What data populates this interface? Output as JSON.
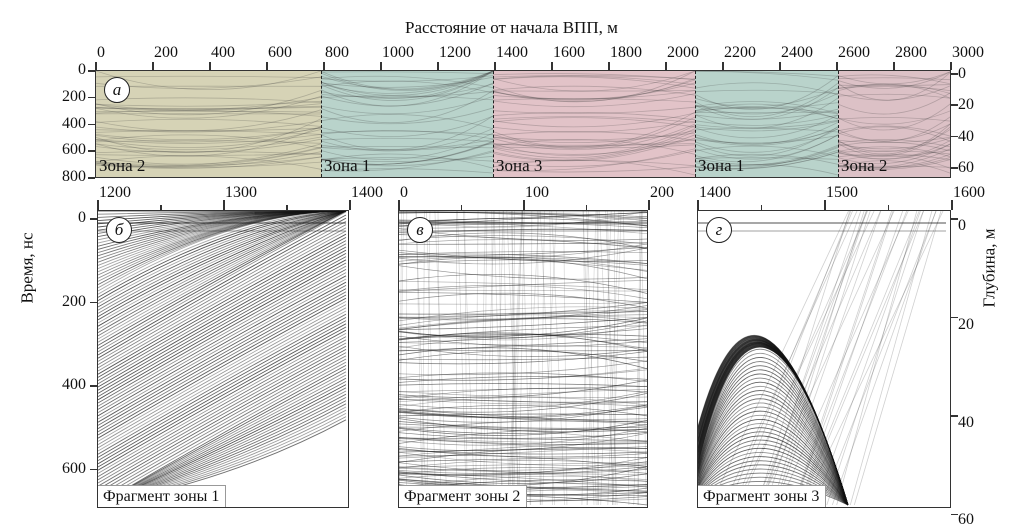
{
  "figure": {
    "top_axis_title": "Расстояние от начала ВПП, м",
    "left_axis_title": "Время, нс",
    "right_axis_title": "Глубина, м"
  },
  "panel_a": {
    "label": "а",
    "x_ticks": [
      "0",
      "200",
      "400",
      "600",
      "800",
      "1000",
      "1200",
      "1400",
      "1600",
      "1800",
      "2000",
      "2200",
      "2400",
      "2600",
      "2800",
      "3000"
    ],
    "time_ticks": [
      "0",
      "200",
      "400",
      "600",
      "800"
    ],
    "depth_ticks": [
      "0",
      "20",
      "40",
      "60"
    ],
    "zones": [
      {
        "label": "Зона 2",
        "color": "#d6d3b6"
      },
      {
        "label": "Зона 1",
        "color": "#b9d3cb"
      },
      {
        "label": "Зона 3",
        "color": "#e2c3c8"
      },
      {
        "label": "Зона 1",
        "color": "#b9d3cb"
      },
      {
        "label": "Зона 2",
        "color": "#dcc1c6"
      }
    ]
  },
  "panel_b": {
    "label": "б",
    "x_ticks": [
      "1200",
      "1300",
      "1400"
    ],
    "time_ticks": [
      "0",
      "200",
      "400",
      "600"
    ],
    "caption": "Фрагмент зоны 1"
  },
  "panel_v": {
    "label": "в",
    "x_ticks": [
      "0",
      "100",
      "200"
    ],
    "caption": "Фрагмент зоны 2"
  },
  "panel_g": {
    "label": "г",
    "x_ticks": [
      "1400",
      "1500",
      "1600"
    ],
    "depth_ticks": [
      "0",
      "20",
      "40",
      "60"
    ],
    "caption": "Фрагмент зоны 3"
  }
}
